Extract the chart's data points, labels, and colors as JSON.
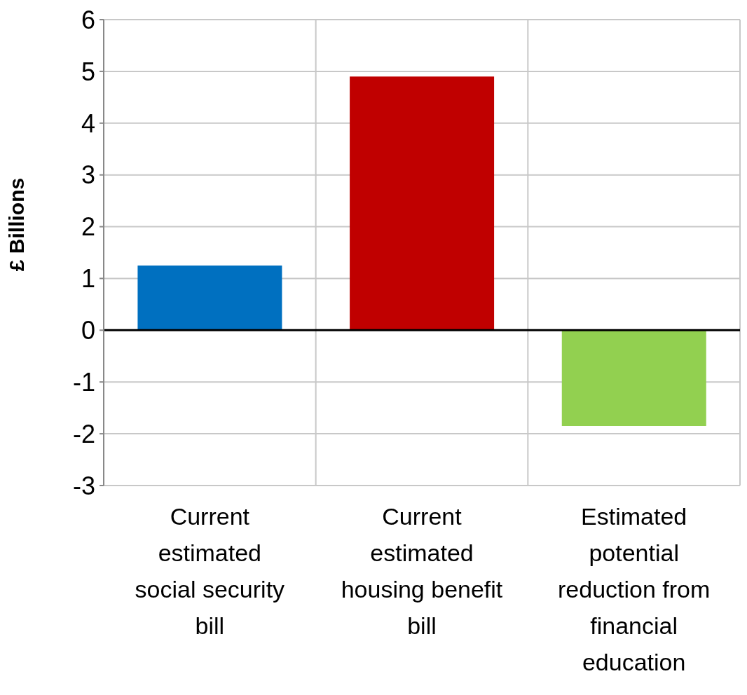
{
  "chart_data": {
    "type": "bar",
    "ylabel": "£ Billions",
    "categories": [
      "Current estimated social security bill",
      "Current estimated housing benefit bill",
      "Estimated potential reduction from financial education"
    ],
    "values": [
      1.25,
      4.9,
      -1.85
    ],
    "colors": [
      "#0070c0",
      "#c00000",
      "#92d050"
    ],
    "ylim": [
      -3,
      6
    ],
    "yticks": [
      -3,
      -2,
      -1,
      0,
      1,
      2,
      3,
      4,
      5,
      6
    ],
    "grid": true,
    "legend": false
  }
}
